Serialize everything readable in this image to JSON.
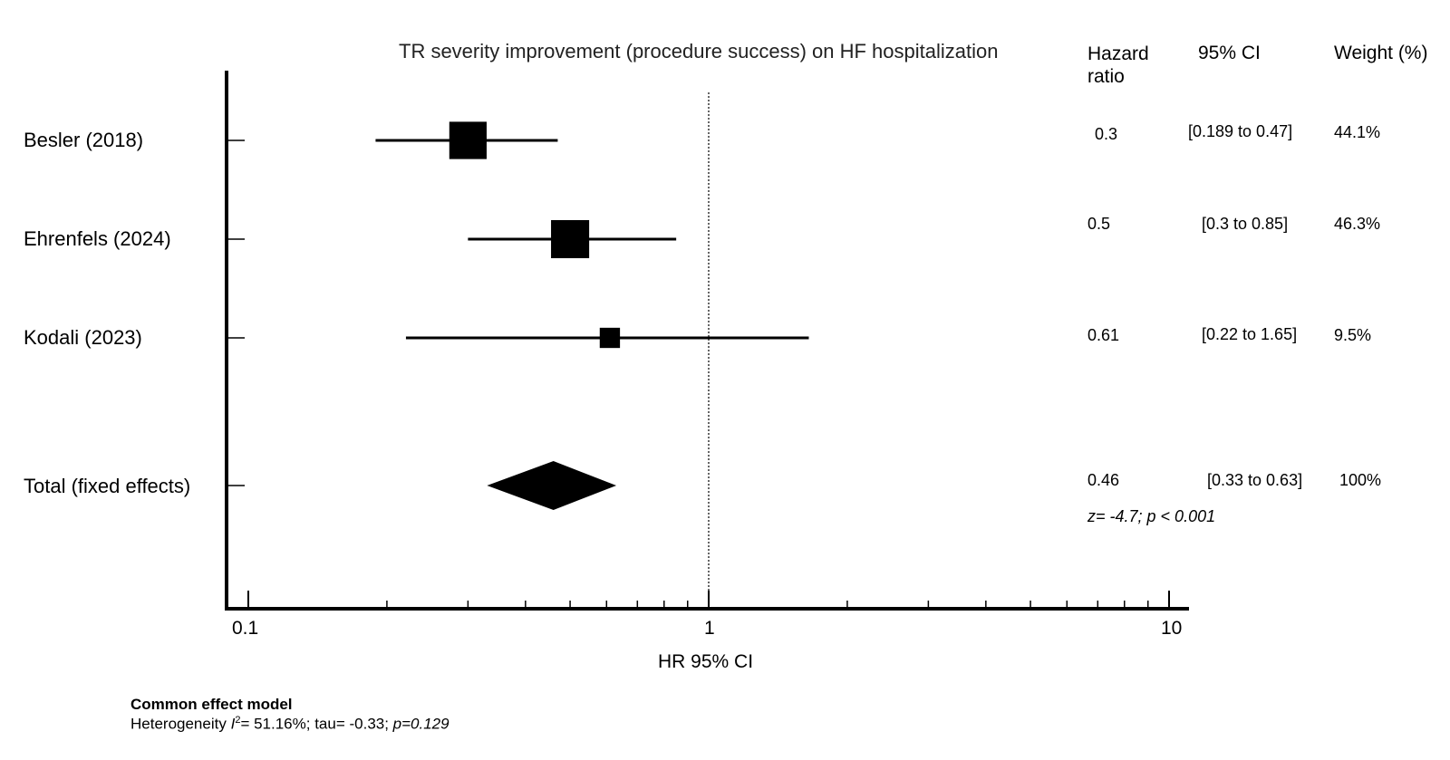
{
  "chart_data": {
    "type": "forest",
    "title": "TR severity improvement (procedure success) on HF hospitalization",
    "xlabel": "HR 95% CI",
    "x_scale": "log",
    "xlim": [
      0.1,
      10
    ],
    "x_ticks": [
      "0.1",
      "1",
      "10"
    ],
    "reference_line": 1,
    "columns": {
      "hr": "Hazard ratio",
      "ci": "95% CI",
      "weight": "Weight (%)"
    },
    "studies": [
      {
        "label": "Besler (2018)",
        "hr": 0.3,
        "lo": 0.189,
        "hi": 0.47,
        "hr_text": "0.3",
        "ci_text": "[0.189 to 0.47]",
        "weight_text": "44.1%",
        "weight": 44.1
      },
      {
        "label": "Ehrenfels (2024)",
        "hr": 0.5,
        "lo": 0.3,
        "hi": 0.85,
        "hr_text": "0.5",
        "ci_text": "[0.3 to 0.85]",
        "weight_text": "46.3%",
        "weight": 46.3
      },
      {
        "label": "Kodali (2023)",
        "hr": 0.61,
        "lo": 0.22,
        "hi": 1.65,
        "hr_text": "0.61",
        "ci_text": "[0.22 to 1.65]",
        "weight_text": "9.5%",
        "weight": 9.5
      }
    ],
    "total": {
      "label": "Total (fixed effects)",
      "hr": 0.46,
      "lo": 0.33,
      "hi": 0.63,
      "hr_text": "0.46",
      "ci_text": "[0.33 to 0.63]",
      "weight_text": "100%",
      "z_text": "z= -4.7; p < 0.001"
    }
  },
  "footer": {
    "model": "Common effect model",
    "heterogeneity_prefix": "Heterogeneity ",
    "i2_symbol": "I",
    "i2_sup": "2",
    "heterogeneity_values": "= 51.16%; tau= -0.33; ",
    "p_text": "p=0.129"
  }
}
